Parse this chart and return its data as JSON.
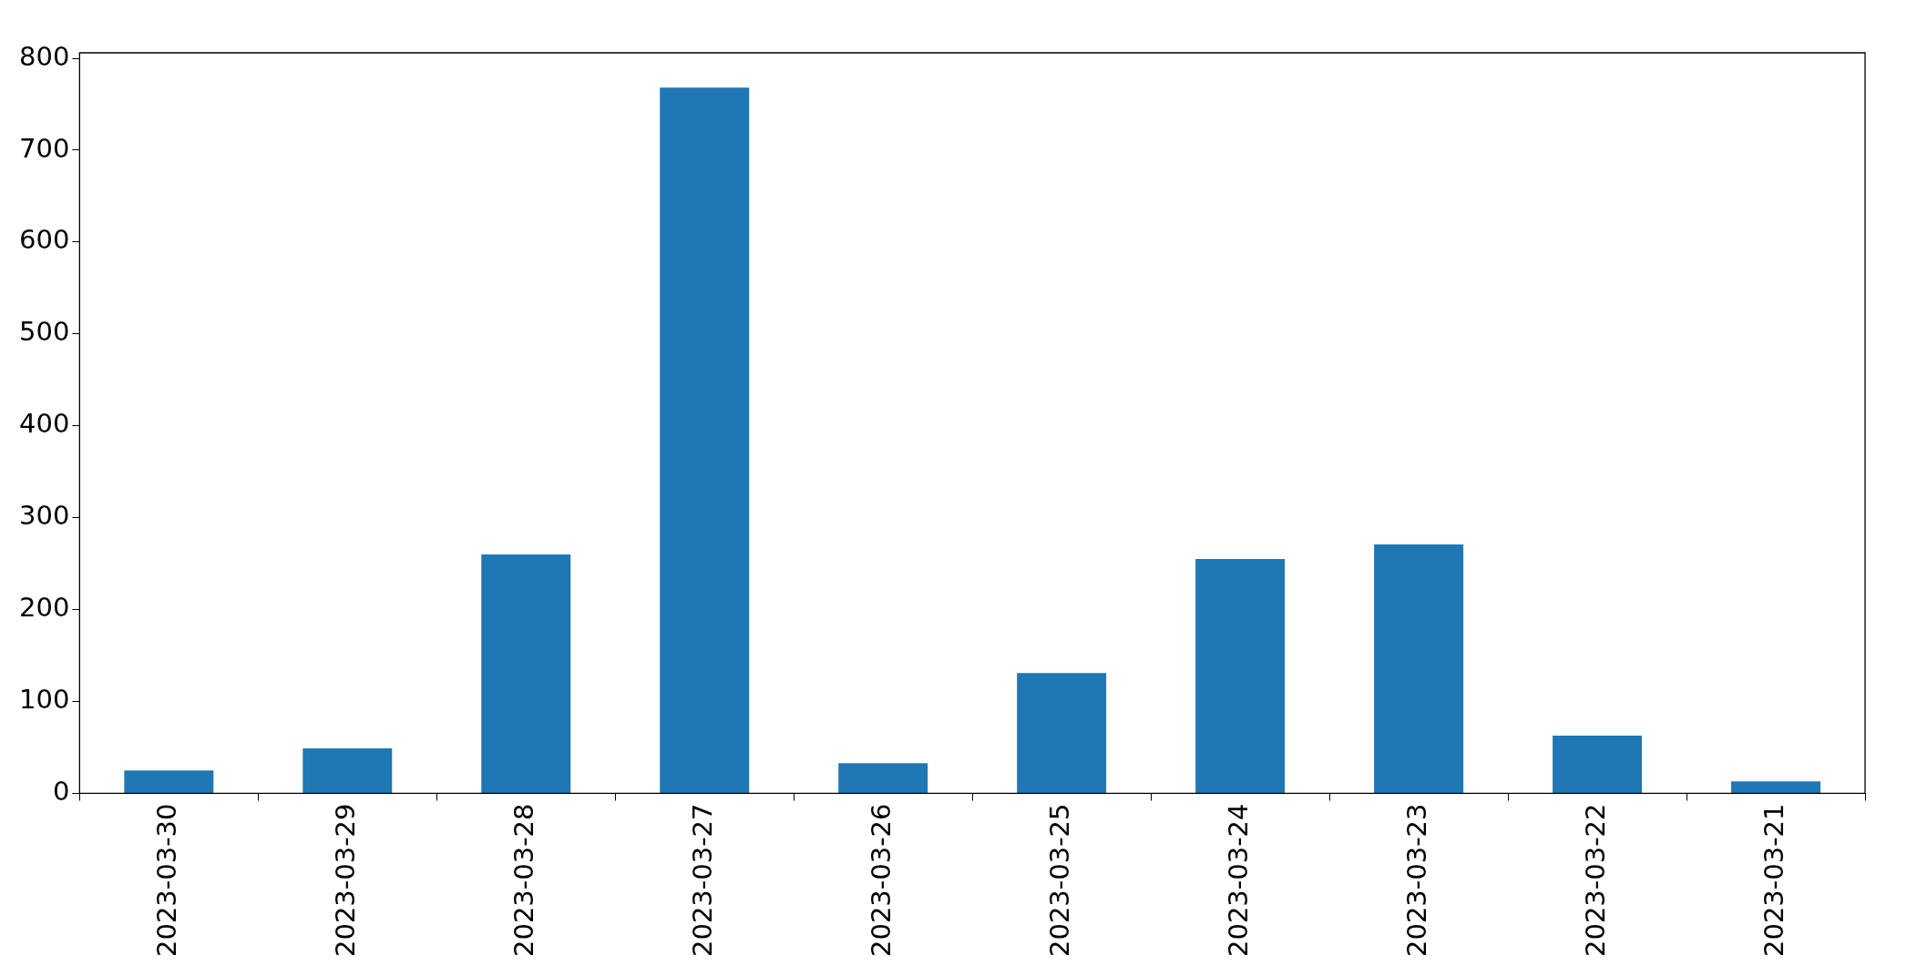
{
  "chart_data": {
    "type": "bar",
    "categories": [
      "2023-03-30",
      "2023-03-29",
      "2023-03-28",
      "2023-03-27",
      "2023-03-26",
      "2023-03-25",
      "2023-03-24",
      "2023-03-23",
      "2023-03-22",
      "2023-03-21"
    ],
    "values": [
      25,
      49,
      260,
      768,
      33,
      131,
      255,
      271,
      63,
      13
    ],
    "color": "#1f77b4",
    "ylim": [
      0,
      806
    ],
    "yticks": [
      0,
      100,
      200,
      300,
      400,
      500,
      600,
      700,
      800
    ],
    "grid": false,
    "legend": false
  }
}
